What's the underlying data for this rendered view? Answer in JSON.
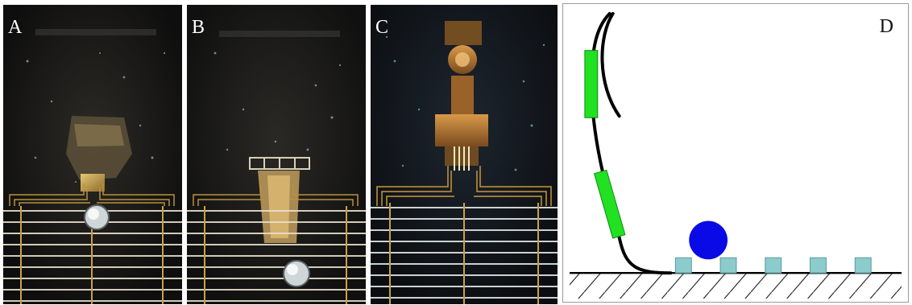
{
  "panels": {
    "a": {
      "label": "A"
    },
    "b": {
      "label": "B"
    },
    "c": {
      "label": "C"
    },
    "d": {
      "label": "D"
    }
  },
  "colors": {
    "dark_background": "#141414",
    "gold_electrode": "#c9a245",
    "electrode_lines": "#e8e0cc",
    "green_segment": "#22e022",
    "blue_sphere": "#0a0ae6",
    "teal_blocks": "#8ccccc",
    "black_curve": "#000000"
  }
}
